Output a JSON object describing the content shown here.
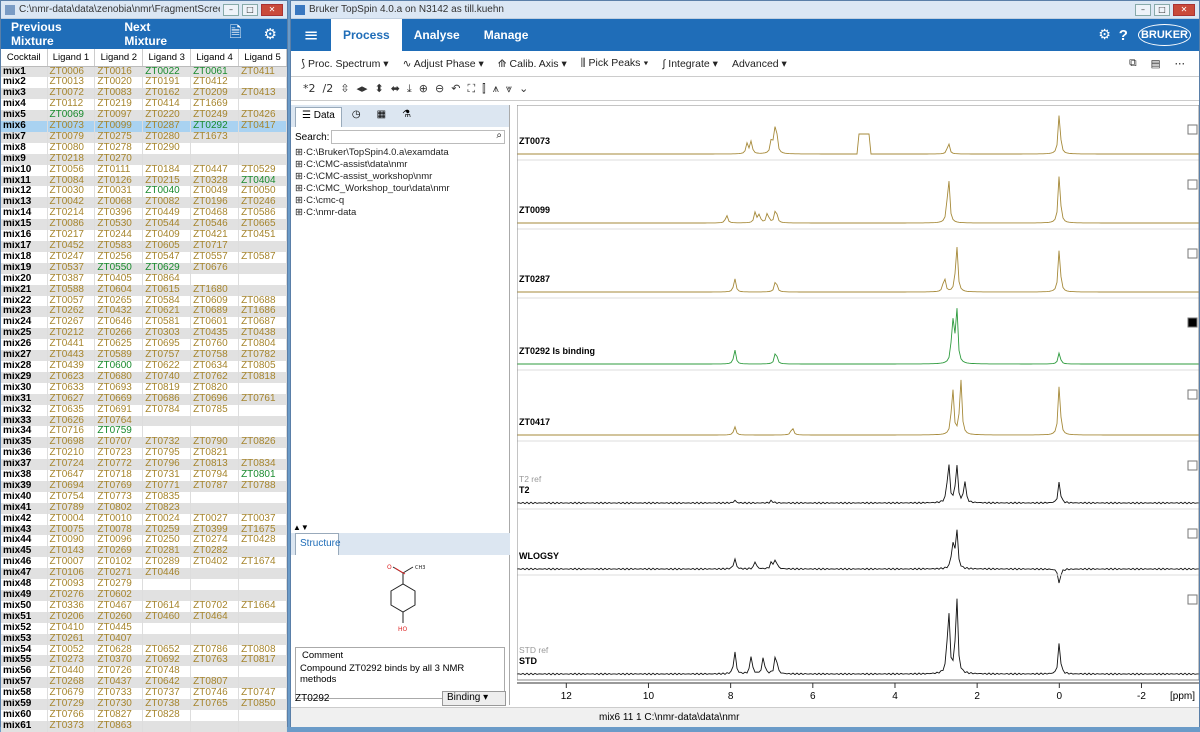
{
  "left_window": {
    "title": "C:\\nmr-data\\data\\zenobia\\nmr\\FragmentScreen.xml",
    "prev": "Previous Mixture",
    "next": "Next Mixture",
    "headers": [
      "Cocktail",
      "Ligand 1",
      "Ligand 2",
      "Ligand 3",
      "Ligand 4",
      "Ligand 5"
    ],
    "rows": [
      [
        "mix1",
        "ZT0006",
        "ZT0016",
        "ZT0022",
        "ZT0061",
        "ZT0411"
      ],
      [
        "mix2",
        "ZT0013",
        "ZT0020",
        "ZT0191",
        "ZT0412",
        ""
      ],
      [
        "mix3",
        "ZT0072",
        "ZT0083",
        "ZT0162",
        "ZT0209",
        "ZT0413"
      ],
      [
        "mix4",
        "ZT0112",
        "ZT0219",
        "ZT0414",
        "ZT1669",
        ""
      ],
      [
        "mix5",
        "ZT0069",
        "ZT0097",
        "ZT0220",
        "ZT0249",
        "ZT0426"
      ],
      [
        "mix6",
        "ZT0073",
        "ZT0099",
        "ZT0287",
        "ZT0292",
        "ZT0417"
      ],
      [
        "mix7",
        "ZT0079",
        "ZT0275",
        "ZT0280",
        "ZT1673",
        ""
      ],
      [
        "mix8",
        "ZT0080",
        "ZT0278",
        "ZT0290",
        "",
        ""
      ],
      [
        "mix9",
        "ZT0218",
        "ZT0270",
        "",
        "",
        ""
      ],
      [
        "mix10",
        "ZT0056",
        "ZT0111",
        "ZT0184",
        "ZT0447",
        "ZT0529"
      ],
      [
        "mix11",
        "ZT0084",
        "ZT0126",
        "ZT0215",
        "ZT0328",
        "ZT0404"
      ],
      [
        "mix12",
        "ZT0030",
        "ZT0031",
        "ZT0040",
        "ZT0049",
        "ZT0050"
      ],
      [
        "mix13",
        "ZT0042",
        "ZT0068",
        "ZT0082",
        "ZT0196",
        "ZT0246"
      ],
      [
        "mix14",
        "ZT0214",
        "ZT0396",
        "ZT0449",
        "ZT0468",
        "ZT0586"
      ],
      [
        "mix15",
        "ZT0086",
        "ZT0530",
        "ZT0544",
        "ZT0546",
        "ZT0665"
      ],
      [
        "mix16",
        "ZT0217",
        "ZT0244",
        "ZT0409",
        "ZT0421",
        "ZT0451"
      ],
      [
        "mix17",
        "ZT0452",
        "ZT0583",
        "ZT0605",
        "ZT0717",
        ""
      ],
      [
        "mix18",
        "ZT0247",
        "ZT0256",
        "ZT0547",
        "ZT0557",
        "ZT0587"
      ],
      [
        "mix19",
        "ZT0537",
        "ZT0550",
        "ZT0629",
        "ZT0676",
        ""
      ],
      [
        "mix20",
        "ZT0387",
        "ZT0405",
        "ZT0864",
        "",
        ""
      ],
      [
        "mix21",
        "ZT0588",
        "ZT0604",
        "ZT0615",
        "ZT1680",
        ""
      ],
      [
        "mix22",
        "ZT0057",
        "ZT0265",
        "ZT0584",
        "ZT0609",
        "ZT0688"
      ],
      [
        "mix23",
        "ZT0262",
        "ZT0432",
        "ZT0621",
        "ZT0689",
        "ZT1686"
      ],
      [
        "mix24",
        "ZT0267",
        "ZT0646",
        "ZT0581",
        "ZT0601",
        "ZT0687"
      ],
      [
        "mix25",
        "ZT0212",
        "ZT0266",
        "ZT0303",
        "ZT0435",
        "ZT0438"
      ],
      [
        "mix26",
        "ZT0441",
        "ZT0625",
        "ZT0695",
        "ZT0760",
        "ZT0804"
      ],
      [
        "mix27",
        "ZT0443",
        "ZT0589",
        "ZT0757",
        "ZT0758",
        "ZT0782"
      ],
      [
        "mix28",
        "ZT0439",
        "ZT0600",
        "ZT0622",
        "ZT0634",
        "ZT0805"
      ],
      [
        "mix29",
        "ZT0623",
        "ZT0680",
        "ZT0740",
        "ZT0762",
        "ZT0818"
      ],
      [
        "mix30",
        "ZT0633",
        "ZT0693",
        "ZT0819",
        "ZT0820",
        ""
      ],
      [
        "mix31",
        "ZT0627",
        "ZT0669",
        "ZT0686",
        "ZT0696",
        "ZT0761"
      ],
      [
        "mix32",
        "ZT0635",
        "ZT0691",
        "ZT0784",
        "ZT0785",
        ""
      ],
      [
        "mix33",
        "ZT0626",
        "ZT0764",
        "",
        "",
        ""
      ],
      [
        "mix34",
        "ZT0716",
        "ZT0759",
        "",
        "",
        ""
      ],
      [
        "mix35",
        "ZT0698",
        "ZT0707",
        "ZT0732",
        "ZT0790",
        "ZT0826"
      ],
      [
        "mix36",
        "ZT0210",
        "ZT0723",
        "ZT0795",
        "ZT0821",
        ""
      ],
      [
        "mix37",
        "ZT0724",
        "ZT0772",
        "ZT0796",
        "ZT0813",
        "ZT0834"
      ],
      [
        "mix38",
        "ZT0647",
        "ZT0718",
        "ZT0731",
        "ZT0794",
        "ZT0801"
      ],
      [
        "mix39",
        "ZT0694",
        "ZT0769",
        "ZT0771",
        "ZT0787",
        "ZT0788"
      ],
      [
        "mix40",
        "ZT0754",
        "ZT0773",
        "ZT0835",
        "",
        ""
      ],
      [
        "mix41",
        "ZT0789",
        "ZT0802",
        "ZT0823",
        "",
        ""
      ],
      [
        "mix42",
        "ZT0004",
        "ZT0010",
        "ZT0024",
        "ZT0027",
        "ZT0037"
      ],
      [
        "mix43",
        "ZT0075",
        "ZT0078",
        "ZT0259",
        "ZT0399",
        "ZT1675"
      ],
      [
        "mix44",
        "ZT0090",
        "ZT0096",
        "ZT0250",
        "ZT0274",
        "ZT0428"
      ],
      [
        "mix45",
        "ZT0143",
        "ZT0269",
        "ZT0281",
        "ZT0282",
        ""
      ],
      [
        "mix46",
        "ZT0007",
        "ZT0102",
        "ZT0289",
        "ZT0402",
        "ZT1674"
      ],
      [
        "mix47",
        "ZT0106",
        "ZT0271",
        "ZT0446",
        "",
        ""
      ],
      [
        "mix48",
        "ZT0093",
        "ZT0279",
        "",
        "",
        ""
      ],
      [
        "mix49",
        "ZT0276",
        "ZT0602",
        "",
        "",
        ""
      ],
      [
        "mix50",
        "ZT0336",
        "ZT0467",
        "ZT0614",
        "ZT0702",
        "ZT1664"
      ],
      [
        "mix51",
        "ZT0206",
        "ZT0260",
        "ZT0460",
        "ZT0464",
        ""
      ],
      [
        "mix52",
        "ZT0410",
        "ZT0445",
        "",
        "",
        ""
      ],
      [
        "mix53",
        "ZT0261",
        "ZT0407",
        "",
        "",
        ""
      ],
      [
        "mix54",
        "ZT0052",
        "ZT0628",
        "ZT0652",
        "ZT0786",
        "ZT0808"
      ],
      [
        "mix55",
        "ZT0273",
        "ZT0370",
        "ZT0692",
        "ZT0763",
        "ZT0817"
      ],
      [
        "mix56",
        "ZT0440",
        "ZT0726",
        "ZT0748",
        "",
        ""
      ],
      [
        "mix57",
        "ZT0268",
        "ZT0437",
        "ZT0642",
        "ZT0807",
        ""
      ],
      [
        "mix58",
        "ZT0679",
        "ZT0733",
        "ZT0737",
        "ZT0746",
        "ZT0747"
      ],
      [
        "mix59",
        "ZT0729",
        "ZT0730",
        "ZT0738",
        "ZT0765",
        "ZT0850"
      ],
      [
        "mix60",
        "ZT0766",
        "ZT0827",
        "ZT0828",
        "",
        ""
      ],
      [
        "mix61",
        "ZT0373",
        "ZT0863",
        "",
        "",
        ""
      ]
    ],
    "green": [
      "ZT0022",
      "ZT0061",
      "ZT0069",
      "ZT0292",
      "ZT0404",
      "ZT0040",
      "ZT0550",
      "ZT0629",
      "ZT0600",
      "ZT0759",
      "ZT0801"
    ],
    "selected_row": "mix6"
  },
  "right_window": {
    "title": "Bruker TopSpin 4.0.a on N3142 as till.kuehn",
    "tabs": [
      "Process",
      "Analyse",
      "Manage"
    ],
    "toolbar": [
      "Proc. Spectrum",
      "Adjust Phase",
      "Calib. Axis",
      "Pick Peaks",
      "Integrate",
      "Advanced"
    ],
    "data_tabs": [
      "Data"
    ],
    "search_label": "Search:",
    "tree": [
      "C:\\Bruker\\TopSpin4.0.a\\examdata",
      "C:\\CMC-assist\\data\\nmr",
      "C:\\CMC-assist_workshop\\nmr",
      "C:\\CMC_Workshop_tour\\data\\nmr",
      "C:\\cmc-q",
      "C:\\nmr-data"
    ],
    "structure_tab": "Structure",
    "comment_title": "Comment",
    "comment_text": "Compound ZT0292 binds by all 3 NMR methods",
    "compound_id": "ZT0292",
    "binding": "Binding",
    "status": "mix6   11   1   C:\\nmr-data\\data\\nmr",
    "traces": [
      {
        "label": "ZT0073",
        "color": "#a68a3a"
      },
      {
        "label": "ZT0099",
        "color": "#a68a3a"
      },
      {
        "label": "ZT0287",
        "color": "#a68a3a"
      },
      {
        "label": "ZT0292   Is binding",
        "color": "#2e9b3e"
      },
      {
        "label": "ZT0417",
        "color": "#a68a3a"
      },
      {
        "label": "T2",
        "sub": "T2 ref",
        "color": "#111"
      },
      {
        "label": "WLOGSY",
        "color": "#111"
      },
      {
        "label": "STD",
        "sub": "STD ref",
        "color": "#111"
      }
    ],
    "axis": {
      "ticks": [
        "12",
        "10",
        "8",
        "6",
        "4",
        "2",
        "0",
        "-2"
      ],
      "unit": "[ppm]"
    }
  }
}
